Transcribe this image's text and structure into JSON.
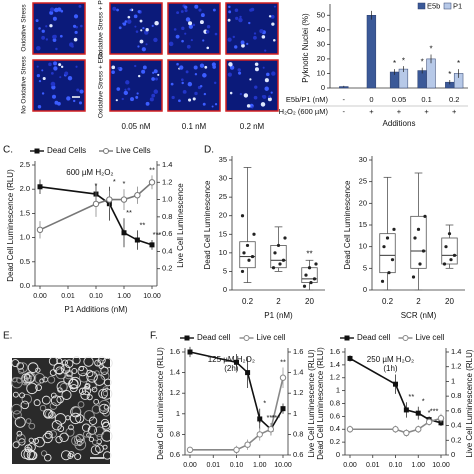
{
  "panels": [
    "C.",
    "D.",
    "E.",
    "F."
  ],
  "images": {
    "row_labels": [
      "Oxidative Stress",
      "No Oxidative Stress"
    ],
    "column_labels": [
      "Oxidative Stress + P1",
      "Oxidative Stress + E5b"
    ],
    "concentrations": [
      "0.05 nM",
      "0.1 nM",
      "0.2 nM"
    ]
  },
  "chart_data": [
    {
      "type": "bar",
      "ylabel": "Pyknotic Nuclei (%)",
      "xlabel": "Additions",
      "category_label": "E5b/P1 (nM)",
      "categories": [
        "-",
        "0",
        "0.05",
        "0.1",
        "0.2"
      ],
      "treatment_label": "H₂O₂ (600 µM)",
      "treatments": [
        "-",
        "+",
        "+",
        "+",
        "+"
      ],
      "ylim": [
        0,
        55
      ],
      "yticks": [
        0,
        10,
        20,
        30,
        40,
        50
      ],
      "legend": "upper right",
      "series": [
        {
          "name": "E5b",
          "color": "#3b5998",
          "values": [
            1,
            50,
            11,
            12,
            4
          ],
          "errors": [
            0.5,
            3,
            2,
            2,
            1.5
          ],
          "significance": [
            null,
            null,
            "*",
            "*",
            "*"
          ]
        },
        {
          "name": "P1",
          "color": "#b7c9e8",
          "values": [
            null,
            null,
            13,
            20,
            10
          ],
          "errors": [
            null,
            null,
            2,
            3,
            3
          ],
          "significance": [
            null,
            null,
            "*",
            "*",
            "*"
          ]
        }
      ]
    },
    {
      "type": "line",
      "annotation": [
        "600 µM H₂O₂"
      ],
      "xlabel": "P1 Additions (nM)",
      "ylabel": "Dead Cell Luminescence (RLU)",
      "y2label": "Live Cell Luminescence",
      "xscale": "log",
      "xlim": [
        0.001,
        10
      ],
      "xticks": [
        {
          "value": 0.001,
          "label": "0.00"
        },
        0.01,
        {
          "value": 0.1,
          "label": "0.10"
        },
        {
          "value": 1,
          "label": "1.00"
        },
        {
          "value": 10,
          "label": "10.00"
        }
      ],
      "ylim": [
        0,
        2.5
      ],
      "yticks": [
        {
          "value": 0,
          "label": "0.0"
        },
        0.5,
        {
          "value": 1,
          "label": "1.0"
        },
        1.5,
        {
          "value": 2,
          "label": "2.0"
        },
        2.5
      ],
      "y2lim": [
        0,
        1.4
      ],
      "y2ticks": [
        0.2,
        0.4,
        0.6,
        0.8,
        {
          "value": 1,
          "label": "1.0"
        },
        1.2,
        1.4
      ],
      "x": [
        0.001,
        0.1,
        0.3,
        1,
        3,
        10
      ],
      "series": [
        {
          "name": "Dead Cells",
          "color": "#111111",
          "marker": "square",
          "values": [
            2.05,
            1.9,
            1.7,
            1.1,
            0.95,
            0.85
          ],
          "errors": [
            0.15,
            0.2,
            0.35,
            0.3,
            0.2,
            0.1
          ],
          "significance": [
            null,
            null,
            "*",
            "**",
            "**",
            "***"
          ]
        },
        {
          "name": "Live Cells",
          "color": "#777777",
          "marker": "circle-open",
          "axis": "y2",
          "values": [
            0.65,
            0.95,
            1.0,
            1.0,
            1.05,
            1.2
          ],
          "errors": [
            0.1,
            0.15,
            0.1,
            0.12,
            0.1,
            0.08
          ],
          "significance": [
            null,
            "*",
            null,
            "*",
            null,
            "**"
          ]
        }
      ]
    },
    {
      "type": "box",
      "ylabel": "Dead Cell Luminescence",
      "xlabel": "P1 (nM)",
      "categories": [
        "0.2",
        "2",
        "20"
      ],
      "ylim": [
        0,
        35
      ],
      "yticks": [
        0,
        5,
        10,
        15,
        20,
        25,
        30,
        35
      ],
      "boxes": [
        {
          "whislo": 2,
          "q1": 6,
          "med": 9,
          "q3": 13,
          "whishi": 33,
          "points": [
            5,
            8,
            9,
            10,
            12,
            15,
            20
          ]
        },
        {
          "whislo": 5,
          "q1": 6,
          "med": 8,
          "q3": 12,
          "whishi": 17,
          "points": [
            6,
            7,
            8,
            10,
            12,
            14
          ]
        },
        {
          "whislo": 0,
          "q1": 2,
          "med": 3,
          "q3": 6,
          "whishi": 8,
          "points": [
            1,
            2,
            3,
            4,
            6,
            7
          ]
        }
      ],
      "significance": [
        null,
        null,
        "**"
      ]
    },
    {
      "type": "box",
      "ylabel": "Dead Cell Luminescence",
      "xlabel": "SCR (nM)",
      "categories": [
        "0.2",
        "2",
        "20"
      ],
      "ylim": [
        0,
        30
      ],
      "yticks": [
        0,
        5,
        10,
        15,
        20,
        25,
        30
      ],
      "boxes": [
        {
          "whislo": 0,
          "q1": 4,
          "med": 8,
          "q3": 13,
          "whishi": 26,
          "points": [
            2,
            4,
            7,
            10,
            12,
            14
          ]
        },
        {
          "whislo": 0,
          "q1": 5,
          "med": 9,
          "q3": 17,
          "whishi": 27,
          "points": [
            3,
            6,
            9,
            12,
            14,
            17
          ]
        },
        {
          "whislo": 5,
          "q1": 6,
          "med": 8,
          "q3": 12,
          "whishi": 15,
          "points": [
            6,
            7,
            8,
            10,
            13
          ]
        }
      ]
    },
    {
      "type": "line",
      "annotation": [
        "125 µM H₂O₂",
        "(2h)"
      ],
      "ylabel": "Dead Cell Luminescence (RLU)",
      "y2label": "Live Cell Luminescence (RLU)",
      "xscale": "log",
      "xlim": [
        0.001,
        10
      ],
      "xticks": [
        {
          "value": 0.001,
          "label": "0.00"
        },
        0.01,
        {
          "value": 0.1,
          "label": "0.10"
        },
        {
          "value": 1,
          "label": "1.00"
        },
        {
          "value": 10,
          "label": "10.00"
        }
      ],
      "ylim": [
        0.6,
        1.6
      ],
      "yticks": [
        0.6,
        0.8,
        1,
        1.2,
        1.4,
        1.6
      ],
      "y2lim": [
        0.6,
        1.6
      ],
      "y2ticks": [
        0.6,
        0.8,
        1,
        1.2,
        1.4,
        1.6
      ],
      "x": [
        0.001,
        0.1,
        0.3,
        1,
        3,
        10
      ],
      "series": [
        {
          "name": "Dead cell",
          "color": "#111111",
          "marker": "square",
          "values": [
            1.6,
            1.5,
            1.4,
            0.95,
            0.85,
            1.05
          ],
          "errors": [
            0.05,
            0.08,
            0.15,
            0.1,
            0.06,
            0.05
          ],
          "significance": [
            null,
            null,
            null,
            "*",
            "***",
            null
          ]
        },
        {
          "name": "Live cell",
          "color": "#888888",
          "marker": "circle-open",
          "axis": "y2",
          "values": [
            0.65,
            0.65,
            0.7,
            0.8,
            0.85,
            1.35
          ],
          "errors": [
            0.03,
            0.04,
            0.05,
            0.06,
            0.06,
            0.1
          ],
          "significance": [
            null,
            null,
            null,
            "*",
            "***",
            "**"
          ]
        }
      ]
    },
    {
      "type": "line",
      "annotation": [
        "250 µM H₂O₂",
        "(1h)"
      ],
      "ylabel": "Dead Cell Luminescence (RLU)",
      "y2label": "Live Cell Luminescence (RLU)",
      "xscale": "log",
      "xlim": [
        0.001,
        10
      ],
      "xticks": [
        {
          "value": 0.001,
          "label": "0.00"
        },
        0.01,
        {
          "value": 0.1,
          "label": "0.10"
        },
        {
          "value": 1,
          "label": "1.00"
        },
        {
          "value": 10,
          "label": "10.00"
        }
      ],
      "ylim": [
        0,
        1.6
      ],
      "yticks": [
        0,
        0.2,
        0.4,
        0.6,
        0.8,
        1,
        1.2,
        1.4,
        1.6
      ],
      "y2lim": [
        0,
        1.4
      ],
      "y2ticks": [
        0,
        0.2,
        0.4,
        0.6,
        0.8,
        1,
        1.2,
        1.4
      ],
      "x": [
        0.001,
        0.1,
        0.3,
        1,
        3,
        10
      ],
      "series": [
        {
          "name": "Dead cell",
          "color": "#111111",
          "marker": "square",
          "values": [
            1.5,
            1.1,
            0.7,
            0.65,
            0.55,
            0.5
          ],
          "errors": [
            0.05,
            0.15,
            0.12,
            0.1,
            0.05,
            0.05
          ],
          "significance": [
            null,
            null,
            "**",
            "*",
            "***",
            null
          ]
        },
        {
          "name": "Live cell",
          "color": "#888888",
          "marker": "circle-open",
          "axis": "y2",
          "values": [
            0.35,
            0.35,
            0.3,
            0.35,
            0.45,
            0.5
          ],
          "errors": [
            0.05,
            0.05,
            0.05,
            0.05,
            0.05,
            0.06
          ],
          "significance": [
            null,
            null,
            null,
            null,
            "*",
            null
          ]
        }
      ]
    }
  ]
}
